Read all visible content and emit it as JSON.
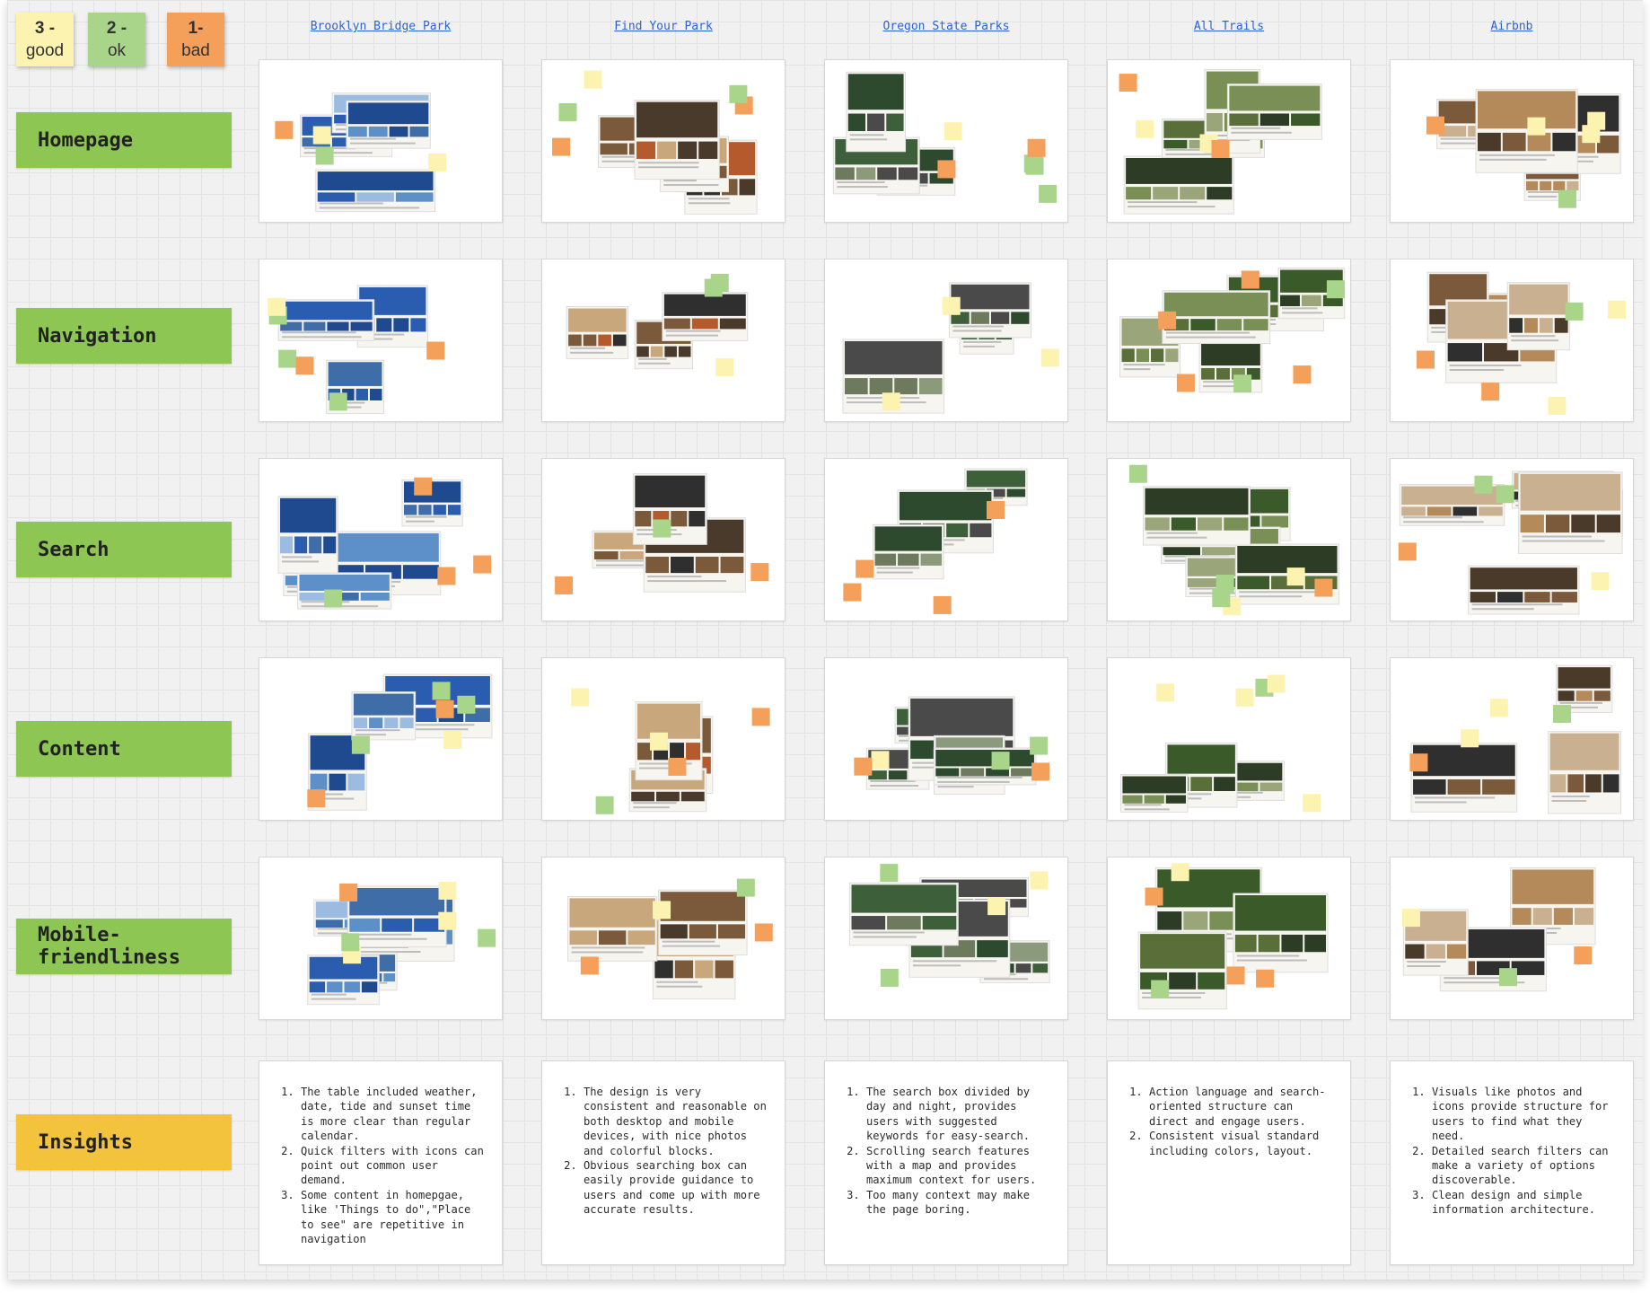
{
  "legend": [
    {
      "num": "3 -",
      "label": "good",
      "color": "#fdf3b0"
    },
    {
      "num": "2 -",
      "label": "ok",
      "color": "#a8d58a"
    },
    {
      "num": "1-",
      "label": "bad",
      "color": "#f4a05a"
    }
  ],
  "rows": [
    {
      "label": "Homepage",
      "color": "#8dc653"
    },
    {
      "label": "Navigation",
      "color": "#8dc653"
    },
    {
      "label": "Search",
      "color": "#8dc653"
    },
    {
      "label": "Content",
      "color": "#8dc653"
    },
    {
      "label": "Mobile-friendliness",
      "color": "#8dc653"
    },
    {
      "label": "Insights",
      "color": "#f3c33e"
    }
  ],
  "columns": [
    {
      "name": "Brooklyn Bridge Park"
    },
    {
      "name": "Find Your Park"
    },
    {
      "name": "Oregon State Parks"
    },
    {
      "name": "All Trails"
    },
    {
      "name": "Airbnb"
    }
  ],
  "insights": [
    [
      "The table included weather, date, tide and sunset time is more clear than regular calendar.",
      "Quick filters with icons can point out common user demand.",
      "Some content in homepgae, like 'Things to do\",\"Place to see\" are repetitive in navigation"
    ],
    [
      "The design is very consistent and reasonable on both desktop and mobile devices, with nice photos and colorful blocks.",
      "Obvious searching box can easily provide guidance to users and come up with more accurate results."
    ],
    [
      "The search box divided by day and night, provides users with suggested keywords for easy-search.",
      "Scrolling search features with a map and provides maximum context for users.",
      "Too many context may make the page boring."
    ],
    [
      "Action language and search-oriented structure can direct and engage users.",
      "Consistent visual standard including colors, layout."
    ],
    [
      "Visuals like photos and icons provide structure for users to find what they need.",
      "Detailed search filters can make a variety of options discoverable.",
      "Clean design and simple information architecture."
    ]
  ],
  "sticky_colors": {
    "good": "#fdf3b0",
    "ok": "#a8d58a",
    "bad": "#f4a05a"
  },
  "screenshot_palettes": [
    [
      "#1f4a8f",
      "#5d8fc9",
      "#2a5db0",
      "#9bbbe0",
      "#3f6da8"
    ],
    [
      "#4a3a2c",
      "#c9a77c",
      "#7a5a3a",
      "#2f2f2f",
      "#b55a2c"
    ],
    [
      "#2e4a2e",
      "#6e7a5e",
      "#3d5f3a",
      "#4a4a4a",
      "#8c9a7c"
    ],
    [
      "#3b5a2a",
      "#7a8f55",
      "#2d3d25",
      "#9aa57a",
      "#5a6e3a"
    ],
    [
      "#7a5a3a",
      "#b48a5a",
      "#4a3a2a",
      "#c9b090",
      "#2f2f2f"
    ]
  ]
}
